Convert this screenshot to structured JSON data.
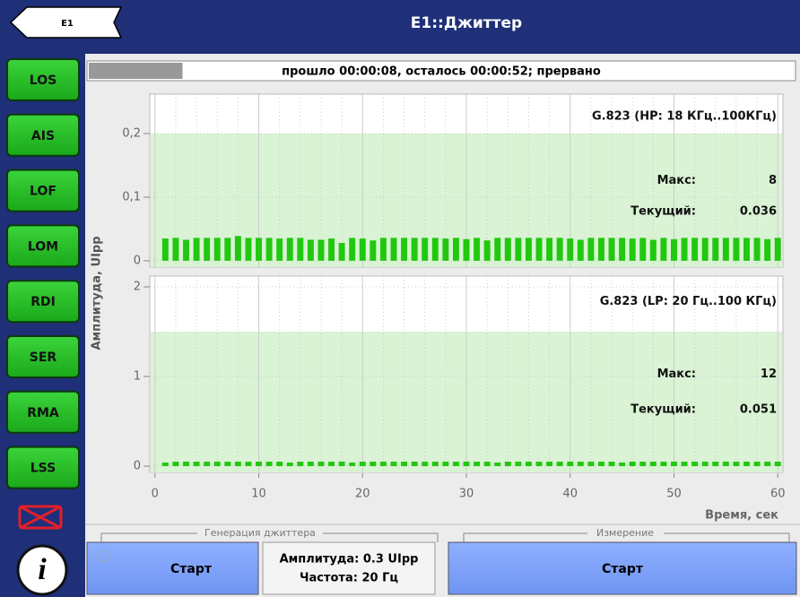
{
  "header": {
    "back": "E1",
    "title": "E1::Джиттер"
  },
  "sidebar": {
    "alarms": [
      "LOS",
      "AIS",
      "LOF",
      "LOM",
      "RDI",
      "SER",
      "RMA",
      "LSS"
    ]
  },
  "progress": {
    "text": "прошло 00:00:08, осталось 00:00:52; прервано",
    "fill": 0.133
  },
  "y_label": "Амплитуда, UIpp",
  "chart_data": [
    {
      "type": "bar",
      "note": "G.823 (HP: 18 КГц..100КГц)",
      "max_label": "Макс:",
      "max": 8,
      "current_label": "Текущий:",
      "current": 0.036,
      "color": "#22c80f",
      "limit": 0.2,
      "limit_color": "#d9f3d4",
      "xlim": [
        -0.5,
        60.5
      ],
      "xticks": [
        0,
        10,
        20,
        30,
        40,
        50,
        60
      ],
      "xminor": [
        2,
        4,
        6,
        8,
        12,
        14,
        16,
        18,
        22,
        24,
        26,
        28,
        32,
        34,
        36,
        38,
        42,
        44,
        46,
        48,
        52,
        54,
        56,
        58
      ],
      "ylim": [
        -0.01,
        0.262
      ],
      "yticks": [
        0,
        {
          "value": 0.1,
          "label": "0,1"
        },
        {
          "value": 0.2,
          "label": "0,2"
        }
      ],
      "x": [
        1,
        2,
        3,
        4,
        5,
        6,
        7,
        8,
        9,
        10,
        11,
        12,
        13,
        14,
        15,
        16,
        17,
        18,
        19,
        20,
        21,
        22,
        23,
        24,
        25,
        26,
        27,
        28,
        29,
        30,
        31,
        32,
        33,
        34,
        35,
        36,
        37,
        38,
        39,
        40,
        41,
        42,
        43,
        44,
        45,
        46,
        47,
        48,
        49,
        50,
        51,
        52,
        53,
        54,
        55,
        56,
        57,
        58,
        59,
        60
      ],
      "values": [
        0.035,
        0.036,
        0.033,
        0.036,
        0.036,
        0.036,
        0.036,
        0.039,
        0.036,
        0.036,
        0.036,
        0.035,
        0.036,
        0.036,
        0.033,
        0.033,
        0.035,
        0.028,
        0.036,
        0.035,
        0.032,
        0.036,
        0.036,
        0.036,
        0.036,
        0.036,
        0.036,
        0.035,
        0.036,
        0.034,
        0.036,
        0.032,
        0.036,
        0.036,
        0.036,
        0.036,
        0.036,
        0.036,
        0.036,
        0.035,
        0.033,
        0.036,
        0.036,
        0.036,
        0.036,
        0.035,
        0.036,
        0.033,
        0.036,
        0.034,
        0.036,
        0.036,
        0.036,
        0.036,
        0.036,
        0.036,
        0.036,
        0.036,
        0.034,
        0.036
      ]
    },
    {
      "type": "bar",
      "note": "G.823 (LP: 20 Гц..100 КГц)",
      "max_label": "Макс:",
      "max": 12,
      "current_label": "Текущий:",
      "current": 0.051,
      "color": "#22c80f",
      "limit": 1.5,
      "limit_color": "#d9f3d4",
      "xlabel": "Время, сек",
      "xlim": [
        -0.5,
        60.5
      ],
      "xticks": [
        0,
        10,
        20,
        30,
        40,
        50,
        60
      ],
      "xminor": [
        2,
        4,
        6,
        8,
        12,
        14,
        16,
        18,
        22,
        24,
        26,
        28,
        32,
        34,
        36,
        38,
        42,
        44,
        46,
        48,
        52,
        54,
        56,
        58
      ],
      "ylim": [
        -0.07,
        2.12
      ],
      "yticks": [
        0,
        1,
        2
      ],
      "x": [
        1,
        2,
        3,
        4,
        5,
        6,
        7,
        8,
        9,
        10,
        11,
        12,
        13,
        14,
        15,
        16,
        17,
        18,
        19,
        20,
        21,
        22,
        23,
        24,
        25,
        26,
        27,
        28,
        29,
        30,
        31,
        32,
        33,
        34,
        35,
        36,
        37,
        38,
        39,
        40,
        41,
        42,
        43,
        44,
        45,
        46,
        47,
        48,
        49,
        50,
        51,
        52,
        53,
        54,
        55,
        56,
        57,
        58,
        59,
        60
      ],
      "values": [
        0.04,
        0.05,
        0.05,
        0.05,
        0.05,
        0.05,
        0.05,
        0.05,
        0.05,
        0.05,
        0.05,
        0.05,
        0.04,
        0.05,
        0.05,
        0.05,
        0.05,
        0.05,
        0.04,
        0.05,
        0.05,
        0.05,
        0.05,
        0.05,
        0.05,
        0.05,
        0.05,
        0.05,
        0.05,
        0.05,
        0.05,
        0.05,
        0.04,
        0.05,
        0.05,
        0.05,
        0.05,
        0.05,
        0.05,
        0.05,
        0.05,
        0.05,
        0.05,
        0.05,
        0.04,
        0.05,
        0.05,
        0.05,
        0.05,
        0.05,
        0.05,
        0.05,
        0.05,
        0.05,
        0.05,
        0.05,
        0.05,
        0.05,
        0.05,
        0.05
      ]
    }
  ],
  "generation": {
    "legend": "Генерация джиттера",
    "start": "Старт",
    "amplitude": "Амплитуда: 0.3 UIpp",
    "frequency": "Частота: 20 Гц"
  },
  "measurement": {
    "legend": "Измерение",
    "start": "Старт"
  }
}
